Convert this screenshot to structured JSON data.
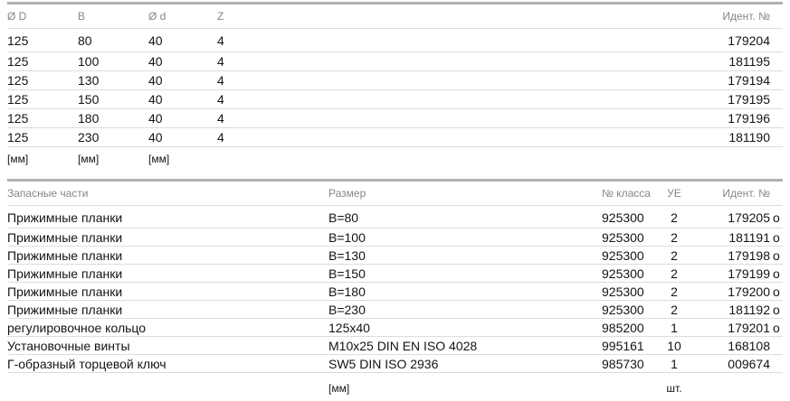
{
  "colors": {
    "header_bar": "#b0b0b0",
    "header_text": "#868686",
    "row_separator": "#dcdcdc",
    "body_text": "#141414"
  },
  "dimensions_table": {
    "headers": [
      "Ø D",
      "B",
      "Ø d",
      "Z",
      "Идент. №"
    ],
    "rows": [
      [
        "125",
        "80",
        "40",
        "4",
        {
          "num": "179204",
          "sfx": ""
        }
      ],
      [
        "125",
        "100",
        "40",
        "4",
        {
          "num": "181195",
          "sfx": ""
        }
      ],
      [
        "125",
        "130",
        "40",
        "4",
        {
          "num": "179194",
          "sfx": ""
        }
      ],
      [
        "125",
        "150",
        "40",
        "4",
        {
          "num": "179195",
          "sfx": ""
        }
      ],
      [
        "125",
        "180",
        "40",
        "4",
        {
          "num": "179196",
          "sfx": ""
        }
      ],
      [
        "125",
        "230",
        "40",
        "4",
        {
          "num": "181190",
          "sfx": ""
        }
      ]
    ],
    "units_rows": [
      [
        "[мм]",
        "[мм]",
        "[мм]",
        "",
        ""
      ]
    ]
  },
  "spare_parts_table": {
    "headers": [
      "Запасные части",
      "Размер",
      "№ класса",
      "УЕ",
      "Идент. №"
    ],
    "rows": [
      [
        "Прижимные планки",
        "B=80",
        "925300",
        "2",
        {
          "num": "179205",
          "sfx": "o"
        }
      ],
      [
        "Прижимные планки",
        "B=100",
        "925300",
        "2",
        {
          "num": "181191",
          "sfx": "o"
        }
      ],
      [
        "Прижимные планки",
        "B=130",
        "925300",
        "2",
        {
          "num": "179198",
          "sfx": "o"
        }
      ],
      [
        "Прижимные планки",
        "B=150",
        "925300",
        "2",
        {
          "num": "179199",
          "sfx": "o"
        }
      ],
      [
        "Прижимные планки",
        "B=180",
        "925300",
        "2",
        {
          "num": "179200",
          "sfx": "o"
        }
      ],
      [
        "Прижимные планки",
        "B=230",
        "925300",
        "2",
        {
          "num": "181192",
          "sfx": "o"
        }
      ],
      [
        "регулировочное кольцо",
        "125x40",
        "985200",
        "1",
        {
          "num": "179201",
          "sfx": "o"
        }
      ],
      [
        "Установочные винты",
        "M10x25 DIN EN ISO 4028",
        "995161",
        "10",
        {
          "num": "168108",
          "sfx": ""
        }
      ],
      [
        "Г-образный торцевой ключ",
        "SW5 DIN ISO 2936",
        "985730",
        "1",
        {
          "num": "009674",
          "sfx": ""
        }
      ]
    ],
    "units_rows": [
      [
        "",
        "[мм]",
        "",
        "шт.",
        ""
      ]
    ]
  }
}
